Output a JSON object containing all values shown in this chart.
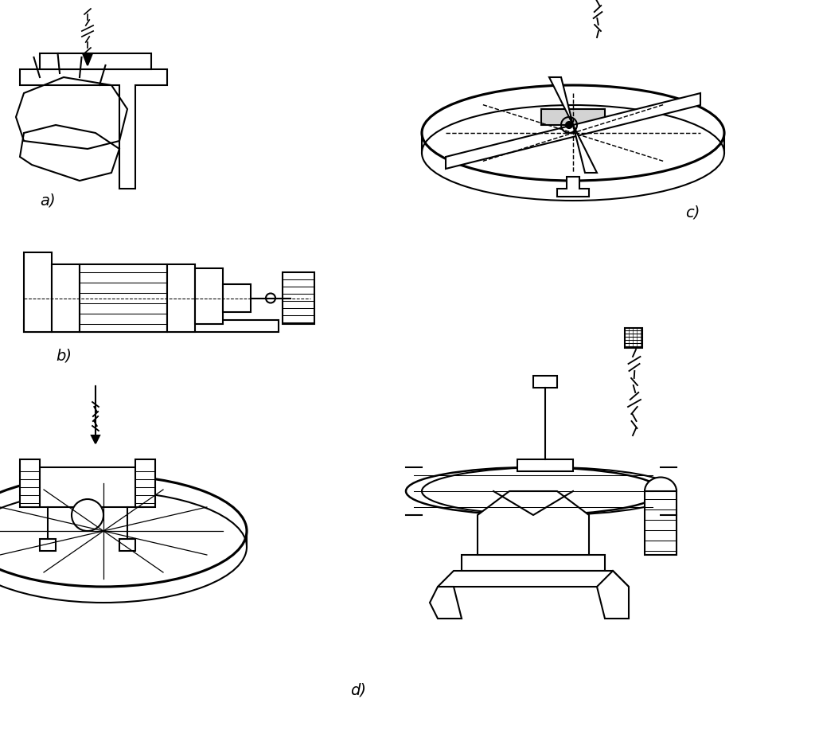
{
  "title": "",
  "background_color": "#ffffff",
  "label_a": "a)",
  "label_b": "b)",
  "label_c": "c)",
  "label_d": "d)",
  "label_fontsize": 14,
  "line_color": "#000000",
  "line_width": 1.5
}
